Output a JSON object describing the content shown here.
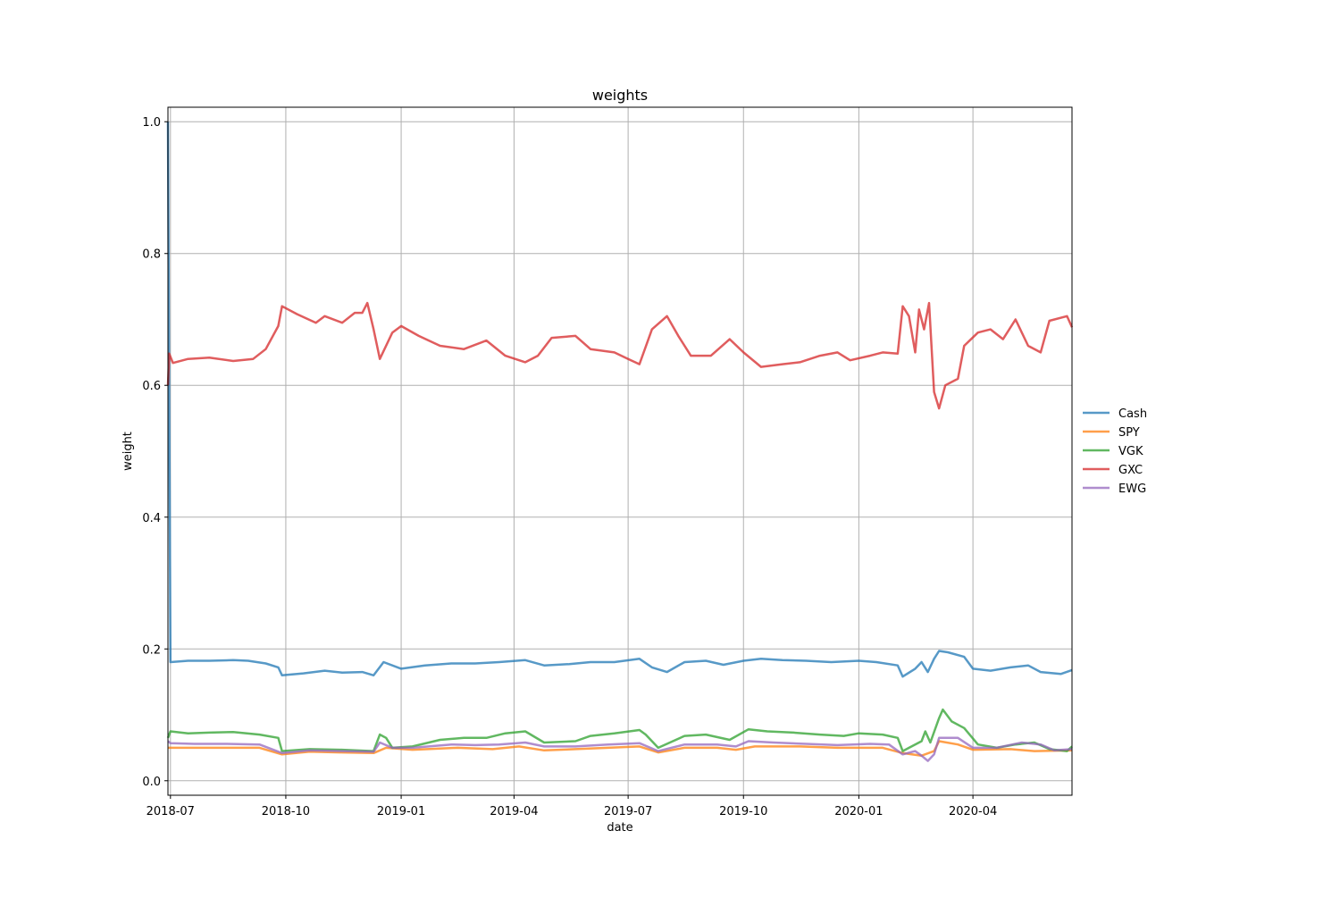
{
  "chart_data": {
    "type": "line",
    "title": "weights",
    "xlabel": "date",
    "ylabel": "weight",
    "x_ticks": [
      "2018-07",
      "2018-10",
      "2019-01",
      "2019-04",
      "2019-07",
      "2019-10",
      "2020-01",
      "2020-04"
    ],
    "y_ticks": [
      "0.0",
      "0.2",
      "0.4",
      "0.6",
      "0.8",
      "1.0"
    ],
    "xlim": [
      "2018-06-29",
      "2020-06-19"
    ],
    "ylim": [
      -0.022,
      1.022
    ],
    "grid": true,
    "legend_position": "center-right outside",
    "series": [
      {
        "name": "Cash",
        "color": "#1f77b4",
        "points": [
          [
            "2018-06-29",
            1.0
          ],
          [
            "2018-07-01",
            0.18
          ],
          [
            "2018-07-15",
            0.182
          ],
          [
            "2018-08-01",
            0.182
          ],
          [
            "2018-08-20",
            0.183
          ],
          [
            "2018-09-01",
            0.182
          ],
          [
            "2018-09-15",
            0.178
          ],
          [
            "2018-09-25",
            0.172
          ],
          [
            "2018-09-28",
            0.16
          ],
          [
            "2018-10-15",
            0.163
          ],
          [
            "2018-11-01",
            0.167
          ],
          [
            "2018-11-15",
            0.164
          ],
          [
            "2018-12-01",
            0.165
          ],
          [
            "2018-12-10",
            0.16
          ],
          [
            "2018-12-18",
            0.18
          ],
          [
            "2019-01-01",
            0.17
          ],
          [
            "2019-01-20",
            0.175
          ],
          [
            "2019-02-10",
            0.178
          ],
          [
            "2019-03-01",
            0.178
          ],
          [
            "2019-03-20",
            0.18
          ],
          [
            "2019-04-10",
            0.183
          ],
          [
            "2019-04-25",
            0.175
          ],
          [
            "2019-05-15",
            0.177
          ],
          [
            "2019-06-01",
            0.18
          ],
          [
            "2019-06-20",
            0.18
          ],
          [
            "2019-07-10",
            0.185
          ],
          [
            "2019-07-20",
            0.172
          ],
          [
            "2019-08-01",
            0.165
          ],
          [
            "2019-08-15",
            0.18
          ],
          [
            "2019-09-01",
            0.182
          ],
          [
            "2019-09-15",
            0.176
          ],
          [
            "2019-10-01",
            0.182
          ],
          [
            "2019-10-15",
            0.185
          ],
          [
            "2019-11-01",
            0.183
          ],
          [
            "2019-11-20",
            0.182
          ],
          [
            "2019-12-10",
            0.18
          ],
          [
            "2020-01-01",
            0.182
          ],
          [
            "2020-01-15",
            0.18
          ],
          [
            "2020-02-01",
            0.175
          ],
          [
            "2020-02-05",
            0.158
          ],
          [
            "2020-02-15",
            0.17
          ],
          [
            "2020-02-20",
            0.18
          ],
          [
            "2020-02-25",
            0.165
          ],
          [
            "2020-03-01",
            0.185
          ],
          [
            "2020-03-05",
            0.197
          ],
          [
            "2020-03-12",
            0.195
          ],
          [
            "2020-03-25",
            0.188
          ],
          [
            "2020-04-01",
            0.17
          ],
          [
            "2020-04-15",
            0.167
          ],
          [
            "2020-05-01",
            0.172
          ],
          [
            "2020-05-15",
            0.175
          ],
          [
            "2020-05-25",
            0.165
          ],
          [
            "2020-06-10",
            0.162
          ],
          [
            "2020-06-19",
            0.168
          ]
        ]
      },
      {
        "name": "SPY",
        "color": "#ff7f0e",
        "points": [
          [
            "2018-06-29",
            0.05
          ],
          [
            "2018-07-15",
            0.05
          ],
          [
            "2018-08-15",
            0.05
          ],
          [
            "2018-09-10",
            0.05
          ],
          [
            "2018-09-28",
            0.04
          ],
          [
            "2018-10-20",
            0.044
          ],
          [
            "2018-11-15",
            0.043
          ],
          [
            "2018-12-10",
            0.042
          ],
          [
            "2018-12-20",
            0.05
          ],
          [
            "2019-01-10",
            0.047
          ],
          [
            "2019-02-15",
            0.05
          ],
          [
            "2019-03-15",
            0.048
          ],
          [
            "2019-04-05",
            0.052
          ],
          [
            "2019-04-25",
            0.046
          ],
          [
            "2019-05-20",
            0.048
          ],
          [
            "2019-06-15",
            0.05
          ],
          [
            "2019-07-10",
            0.052
          ],
          [
            "2019-07-25",
            0.043
          ],
          [
            "2019-08-15",
            0.05
          ],
          [
            "2019-09-10",
            0.05
          ],
          [
            "2019-09-25",
            0.047
          ],
          [
            "2019-10-10",
            0.052
          ],
          [
            "2019-11-15",
            0.052
          ],
          [
            "2019-12-15",
            0.05
          ],
          [
            "2020-01-20",
            0.05
          ],
          [
            "2020-02-05",
            0.042
          ],
          [
            "2020-02-20",
            0.038
          ],
          [
            "2020-03-01",
            0.045
          ],
          [
            "2020-03-05",
            0.06
          ],
          [
            "2020-03-20",
            0.055
          ],
          [
            "2020-04-01",
            0.047
          ],
          [
            "2020-05-01",
            0.048
          ],
          [
            "2020-05-20",
            0.045
          ],
          [
            "2020-06-19",
            0.046
          ]
        ]
      },
      {
        "name": "VGK",
        "color": "#2ca02c",
        "points": [
          [
            "2018-06-29",
            0.065
          ],
          [
            "2018-07-01",
            0.075
          ],
          [
            "2018-07-15",
            0.072
          ],
          [
            "2018-08-01",
            0.073
          ],
          [
            "2018-08-20",
            0.074
          ],
          [
            "2018-09-10",
            0.07
          ],
          [
            "2018-09-25",
            0.065
          ],
          [
            "2018-09-28",
            0.045
          ],
          [
            "2018-10-20",
            0.048
          ],
          [
            "2018-11-15",
            0.047
          ],
          [
            "2018-12-10",
            0.045
          ],
          [
            "2018-12-15",
            0.07
          ],
          [
            "2018-12-20",
            0.065
          ],
          [
            "2018-12-25",
            0.05
          ],
          [
            "2019-01-10",
            0.052
          ],
          [
            "2019-02-01",
            0.062
          ],
          [
            "2019-02-20",
            0.065
          ],
          [
            "2019-03-10",
            0.065
          ],
          [
            "2019-03-25",
            0.072
          ],
          [
            "2019-04-10",
            0.075
          ],
          [
            "2019-04-25",
            0.058
          ],
          [
            "2019-05-20",
            0.06
          ],
          [
            "2019-06-01",
            0.068
          ],
          [
            "2019-06-20",
            0.072
          ],
          [
            "2019-07-10",
            0.077
          ],
          [
            "2019-07-15",
            0.07
          ],
          [
            "2019-07-25",
            0.05
          ],
          [
            "2019-08-15",
            0.068
          ],
          [
            "2019-09-01",
            0.07
          ],
          [
            "2019-09-20",
            0.062
          ],
          [
            "2019-10-05",
            0.078
          ],
          [
            "2019-10-20",
            0.075
          ],
          [
            "2019-11-10",
            0.073
          ],
          [
            "2019-12-01",
            0.07
          ],
          [
            "2019-12-20",
            0.068
          ],
          [
            "2020-01-01",
            0.072
          ],
          [
            "2020-01-20",
            0.07
          ],
          [
            "2020-02-01",
            0.065
          ],
          [
            "2020-02-05",
            0.045
          ],
          [
            "2020-02-20",
            0.06
          ],
          [
            "2020-02-23",
            0.075
          ],
          [
            "2020-02-27",
            0.058
          ],
          [
            "2020-03-05",
            0.095
          ],
          [
            "2020-03-08",
            0.108
          ],
          [
            "2020-03-15",
            0.09
          ],
          [
            "2020-03-25",
            0.08
          ],
          [
            "2020-04-05",
            0.055
          ],
          [
            "2020-04-20",
            0.05
          ],
          [
            "2020-05-05",
            0.055
          ],
          [
            "2020-05-20",
            0.058
          ],
          [
            "2020-06-01",
            0.048
          ],
          [
            "2020-06-15",
            0.045
          ],
          [
            "2020-06-19",
            0.052
          ]
        ]
      },
      {
        "name": "GXC",
        "color": "#d62728",
        "points": [
          [
            "2018-06-29",
            0.6
          ],
          [
            "2018-06-30",
            0.648
          ],
          [
            "2018-07-03",
            0.634
          ],
          [
            "2018-07-15",
            0.64
          ],
          [
            "2018-08-01",
            0.642
          ],
          [
            "2018-08-20",
            0.637
          ],
          [
            "2018-09-05",
            0.64
          ],
          [
            "2018-09-15",
            0.655
          ],
          [
            "2018-09-25",
            0.69
          ],
          [
            "2018-09-28",
            0.72
          ],
          [
            "2018-10-10",
            0.708
          ],
          [
            "2018-10-25",
            0.695
          ],
          [
            "2018-11-01",
            0.705
          ],
          [
            "2018-11-15",
            0.695
          ],
          [
            "2018-11-25",
            0.71
          ],
          [
            "2018-12-01",
            0.71
          ],
          [
            "2018-12-05",
            0.725
          ],
          [
            "2018-12-10",
            0.685
          ],
          [
            "2018-12-15",
            0.64
          ],
          [
            "2018-12-25",
            0.68
          ],
          [
            "2019-01-01",
            0.69
          ],
          [
            "2019-01-15",
            0.675
          ],
          [
            "2019-02-01",
            0.66
          ],
          [
            "2019-02-20",
            0.655
          ],
          [
            "2019-03-10",
            0.668
          ],
          [
            "2019-03-25",
            0.645
          ],
          [
            "2019-04-10",
            0.635
          ],
          [
            "2019-04-20",
            0.645
          ],
          [
            "2019-05-01",
            0.672
          ],
          [
            "2019-05-20",
            0.675
          ],
          [
            "2019-06-01",
            0.655
          ],
          [
            "2019-06-20",
            0.65
          ],
          [
            "2019-07-01",
            0.64
          ],
          [
            "2019-07-10",
            0.632
          ],
          [
            "2019-07-20",
            0.685
          ],
          [
            "2019-08-01",
            0.705
          ],
          [
            "2019-08-10",
            0.675
          ],
          [
            "2019-08-20",
            0.645
          ],
          [
            "2019-09-05",
            0.645
          ],
          [
            "2019-09-20",
            0.67
          ],
          [
            "2019-10-01",
            0.65
          ],
          [
            "2019-10-15",
            0.628
          ],
          [
            "2019-11-01",
            0.632
          ],
          [
            "2019-11-15",
            0.635
          ],
          [
            "2019-12-01",
            0.645
          ],
          [
            "2019-12-15",
            0.65
          ],
          [
            "2019-12-25",
            0.638
          ],
          [
            "2020-01-10",
            0.645
          ],
          [
            "2020-01-20",
            0.65
          ],
          [
            "2020-02-01",
            0.648
          ],
          [
            "2020-02-05",
            0.72
          ],
          [
            "2020-02-10",
            0.705
          ],
          [
            "2020-02-15",
            0.65
          ],
          [
            "2020-02-18",
            0.715
          ],
          [
            "2020-02-22",
            0.685
          ],
          [
            "2020-02-26",
            0.725
          ],
          [
            "2020-03-01",
            0.59
          ],
          [
            "2020-03-05",
            0.565
          ],
          [
            "2020-03-10",
            0.6
          ],
          [
            "2020-03-20",
            0.61
          ],
          [
            "2020-03-25",
            0.66
          ],
          [
            "2020-04-05",
            0.68
          ],
          [
            "2020-04-15",
            0.685
          ],
          [
            "2020-04-25",
            0.67
          ],
          [
            "2020-05-05",
            0.7
          ],
          [
            "2020-05-15",
            0.66
          ],
          [
            "2020-05-25",
            0.65
          ],
          [
            "2020-06-01",
            0.698
          ],
          [
            "2020-06-15",
            0.705
          ],
          [
            "2020-06-19",
            0.688
          ]
        ]
      },
      {
        "name": "EWG",
        "color": "#9467bd",
        "points": [
          [
            "2018-06-29",
            0.06
          ],
          [
            "2018-07-01",
            0.057
          ],
          [
            "2018-07-20",
            0.056
          ],
          [
            "2018-08-15",
            0.056
          ],
          [
            "2018-09-10",
            0.055
          ],
          [
            "2018-09-28",
            0.042
          ],
          [
            "2018-10-20",
            0.046
          ],
          [
            "2018-11-15",
            0.045
          ],
          [
            "2018-12-10",
            0.044
          ],
          [
            "2018-12-15",
            0.058
          ],
          [
            "2018-12-25",
            0.05
          ],
          [
            "2019-01-10",
            0.05
          ],
          [
            "2019-02-10",
            0.055
          ],
          [
            "2019-03-01",
            0.054
          ],
          [
            "2019-03-20",
            0.055
          ],
          [
            "2019-04-10",
            0.058
          ],
          [
            "2019-04-25",
            0.052
          ],
          [
            "2019-05-20",
            0.052
          ],
          [
            "2019-06-15",
            0.055
          ],
          [
            "2019-07-10",
            0.057
          ],
          [
            "2019-07-25",
            0.045
          ],
          [
            "2019-08-15",
            0.055
          ],
          [
            "2019-09-10",
            0.055
          ],
          [
            "2019-09-25",
            0.052
          ],
          [
            "2019-10-05",
            0.06
          ],
          [
            "2019-10-25",
            0.058
          ],
          [
            "2019-11-20",
            0.056
          ],
          [
            "2019-12-15",
            0.054
          ],
          [
            "2020-01-10",
            0.056
          ],
          [
            "2020-01-25",
            0.055
          ],
          [
            "2020-02-05",
            0.04
          ],
          [
            "2020-02-15",
            0.045
          ],
          [
            "2020-02-20",
            0.038
          ],
          [
            "2020-02-25",
            0.03
          ],
          [
            "2020-03-01",
            0.04
          ],
          [
            "2020-03-05",
            0.065
          ],
          [
            "2020-03-20",
            0.065
          ],
          [
            "2020-04-01",
            0.05
          ],
          [
            "2020-04-20",
            0.05
          ],
          [
            "2020-05-10",
            0.058
          ],
          [
            "2020-05-25",
            0.055
          ],
          [
            "2020-06-05",
            0.046
          ],
          [
            "2020-06-19",
            0.048
          ]
        ]
      }
    ]
  }
}
